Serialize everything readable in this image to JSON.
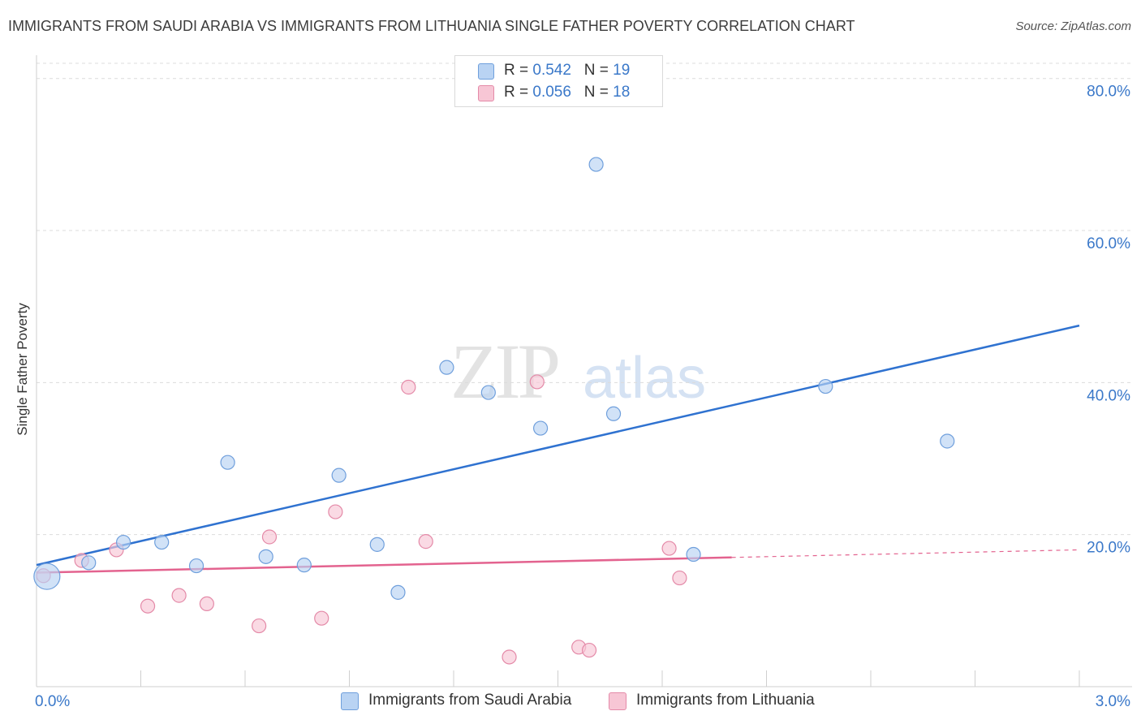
{
  "title": "IMMIGRANTS FROM SAUDI ARABIA VS IMMIGRANTS FROM LITHUANIA SINGLE FATHER POVERTY CORRELATION CHART",
  "source": "Source: ZipAtlas.com",
  "watermark": {
    "zip": "ZIP",
    "atlas": "atlas"
  },
  "legend": {
    "rows": [
      {
        "r_label": "R =",
        "r_value": "0.542",
        "n_label": "N =",
        "n_value": "19"
      },
      {
        "r_label": "R =",
        "r_value": "0.056",
        "n_label": "N =",
        "n_value": "18"
      }
    ]
  },
  "bottom_legend": {
    "series1": "Immigrants from Saudi Arabia",
    "series2": "Immigrants from Lithuania"
  },
  "colors": {
    "blue_fill": "#b9d3f3",
    "blue_stroke": "#6f9fdc",
    "blue_line": "#2f72d0",
    "pink_fill": "#f7c6d5",
    "pink_stroke": "#e48aa8",
    "pink_line": "#e3638f",
    "tick_text": "#3a78c9",
    "grid": "#dcdcdc"
  },
  "chart_data": {
    "type": "scatter",
    "title": "IMMIGRANTS FROM SAUDI ARABIA VS IMMIGRANTS FROM LITHUANIA SINGLE FATHER POVERTY CORRELATION CHART",
    "xlabel": "",
    "ylabel": "Single Father Poverty",
    "xlim": [
      0,
      3.0
    ],
    "ylim": [
      0,
      82
    ],
    "x_tick_labels": [
      "0.0%",
      "3.0%"
    ],
    "y_ticks": [
      20,
      40,
      60,
      80
    ],
    "y_tick_labels": [
      "20.0%",
      "40.0%",
      "60.0%",
      "80.0%"
    ],
    "series": [
      {
        "name": "Immigrants from Saudi Arabia",
        "color": "blue",
        "points": [
          {
            "x": 0.03,
            "y": 14.5,
            "big": true
          },
          {
            "x": 0.15,
            "y": 16.3
          },
          {
            "x": 0.25,
            "y": 19.0
          },
          {
            "x": 0.36,
            "y": 19.0
          },
          {
            "x": 0.46,
            "y": 15.9
          },
          {
            "x": 0.55,
            "y": 29.5
          },
          {
            "x": 0.66,
            "y": 17.1
          },
          {
            "x": 0.77,
            "y": 16.0
          },
          {
            "x": 0.87,
            "y": 27.8
          },
          {
            "x": 0.98,
            "y": 18.7
          },
          {
            "x": 1.04,
            "y": 12.4
          },
          {
            "x": 1.18,
            "y": 42.0
          },
          {
            "x": 1.3,
            "y": 38.7
          },
          {
            "x": 1.45,
            "y": 34.0
          },
          {
            "x": 1.61,
            "y": 68.7
          },
          {
            "x": 1.66,
            "y": 35.9
          },
          {
            "x": 1.89,
            "y": 17.4
          },
          {
            "x": 2.27,
            "y": 39.5
          },
          {
            "x": 2.62,
            "y": 32.3
          }
        ],
        "trend": {
          "x0": 0.0,
          "y0": 16.0,
          "x1": 3.0,
          "y1": 47.5
        }
      },
      {
        "name": "Immigrants from Lithuania",
        "color": "pink",
        "points": [
          {
            "x": 0.02,
            "y": 14.6
          },
          {
            "x": 0.13,
            "y": 16.6
          },
          {
            "x": 0.23,
            "y": 18.0
          },
          {
            "x": 0.32,
            "y": 10.6
          },
          {
            "x": 0.41,
            "y": 12.0
          },
          {
            "x": 0.49,
            "y": 10.9
          },
          {
            "x": 0.64,
            "y": 8.0
          },
          {
            "x": 0.67,
            "y": 19.7
          },
          {
            "x": 0.82,
            "y": 9.0
          },
          {
            "x": 0.86,
            "y": 23.0
          },
          {
            "x": 1.07,
            "y": 39.4
          },
          {
            "x": 1.12,
            "y": 19.1
          },
          {
            "x": 1.36,
            "y": 3.9
          },
          {
            "x": 1.44,
            "y": 40.1
          },
          {
            "x": 1.56,
            "y": 5.2
          },
          {
            "x": 1.59,
            "y": 4.8
          },
          {
            "x": 1.82,
            "y": 18.2
          },
          {
            "x": 1.85,
            "y": 14.3
          }
        ],
        "trend": {
          "x0": 0.0,
          "y0": 15.0,
          "x1": 2.0,
          "y1": 17.0,
          "dash_to_x": 3.0,
          "dash_to_y": 18.0
        }
      }
    ]
  }
}
